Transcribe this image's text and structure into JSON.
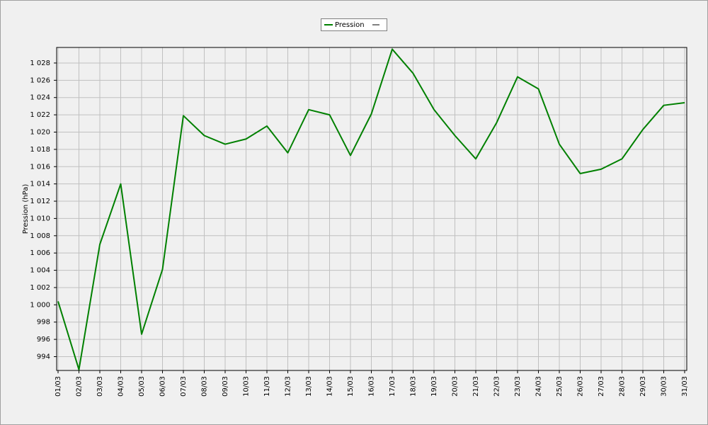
{
  "chart_data": {
    "type": "line",
    "y_label": "Pression (hPa)",
    "categories": [
      "01/03",
      "02/03",
      "03/03",
      "04/03",
      "05/03",
      "06/03",
      "07/03",
      "08/03",
      "09/03",
      "10/03",
      "11/03",
      "12/03",
      "13/03",
      "14/03",
      "15/03",
      "16/03",
      "17/03",
      "18/03",
      "19/03",
      "20/03",
      "21/03",
      "22/03",
      "23/03",
      "24/03",
      "25/03",
      "26/03",
      "27/03",
      "28/03",
      "29/03",
      "30/03",
      "31/03"
    ],
    "series": [
      {
        "name": "Pression",
        "color": "#008000",
        "values": [
          1000.4,
          992.5,
          1007.0,
          1014.0,
          996.6,
          1004.1,
          1021.9,
          1019.6,
          1018.6,
          1019.2,
          1020.7,
          1017.6,
          1022.6,
          1022.0,
          1017.3,
          1022.1,
          1029.6,
          1026.8,
          1022.6,
          1019.6,
          1016.9,
          1021.1,
          1026.4,
          1025.0,
          1018.6,
          1015.2,
          1015.7,
          1016.9,
          1020.3,
          1023.1,
          1023.4
        ]
      }
    ],
    "ylim": [
      992.4,
      1029.8
    ],
    "yticks": [
      994,
      996,
      998,
      {
        "value": 1000,
        "label": "1 000"
      },
      {
        "value": 1002,
        "label": "1 002"
      },
      {
        "value": 1004,
        "label": "1 004"
      },
      {
        "value": 1006,
        "label": "1 006"
      },
      {
        "value": 1008,
        "label": "1 008"
      },
      {
        "value": 1010,
        "label": "1 010"
      },
      {
        "value": 1012,
        "label": "1 012"
      },
      {
        "value": 1014,
        "label": "1 014"
      },
      {
        "value": 1016,
        "label": "1 016"
      },
      {
        "value": 1018,
        "label": "1 018"
      },
      {
        "value": 1020,
        "label": "1 020"
      },
      {
        "value": 1022,
        "label": "1 022"
      },
      {
        "value": 1024,
        "label": "1 024"
      },
      {
        "value": 1026,
        "label": "1 026"
      },
      {
        "value": 1028,
        "label": "1 028"
      }
    ],
    "grid": true,
    "legend": "top"
  }
}
